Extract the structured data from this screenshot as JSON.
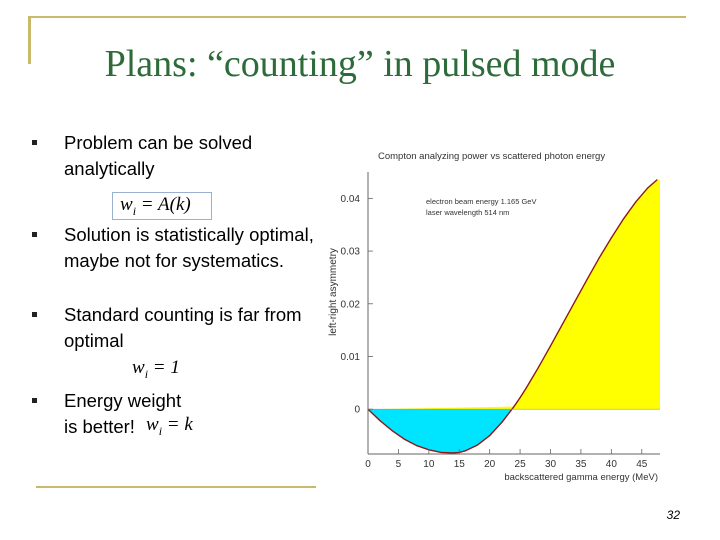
{
  "slide": {
    "title": "Plans: “counting” in pulsed mode",
    "page_number": "32",
    "accent_color": "#2e6b3a",
    "frame_color": "#c9b96a"
  },
  "bullets": [
    {
      "text": "Problem can be solved analytically"
    },
    {
      "text": "Solution is statistically optimal, maybe not for systematics."
    },
    {
      "text": "Standard counting is far from optimal"
    },
    {
      "text": "Energy weight is better!"
    }
  ],
  "formulas": {
    "analytic": "wi = A(k)",
    "standard": "wi = 1",
    "energy": "wi = k"
  },
  "chart_data": {
    "type": "area",
    "title": "Compton analyzing power vs scattered photon energy",
    "xlabel": "backscattered gamma energy (MeV)",
    "ylabel": "left-right asymmetry",
    "xlim": [
      0,
      48
    ],
    "ylim": [
      -0.0085,
      0.045
    ],
    "xticks": [
      0,
      5,
      10,
      15,
      20,
      25,
      30,
      35,
      40,
      45
    ],
    "yticks": [
      0,
      0.01,
      0.02,
      0.03,
      0.04
    ],
    "ytick_labels": [
      "0",
      "0.01",
      "0.02",
      "0.03",
      "0.04"
    ],
    "annotations": [
      "electron beam energy 1.165 GeV",
      "laser wavelength 514 nm"
    ],
    "fill_negative_color": "#00e5ff",
    "fill_positive_color": "#ffff00",
    "x": [
      0,
      2,
      4,
      6,
      8,
      10,
      12,
      14,
      15,
      16,
      18,
      20,
      22,
      24,
      25,
      26,
      28,
      30,
      32,
      34,
      36,
      38,
      40,
      42,
      44,
      46,
      47.5
    ],
    "values": [
      0,
      -0.0022,
      -0.0041,
      -0.0057,
      -0.0069,
      -0.0077,
      -0.0082,
      -0.0083,
      -0.0082,
      -0.0079,
      -0.0068,
      -0.005,
      -0.0025,
      0.0005,
      0.0022,
      0.004,
      0.0079,
      0.012,
      0.0162,
      0.0204,
      0.0246,
      0.0287,
      0.0325,
      0.0361,
      0.0393,
      0.042,
      0.0435
    ]
  }
}
